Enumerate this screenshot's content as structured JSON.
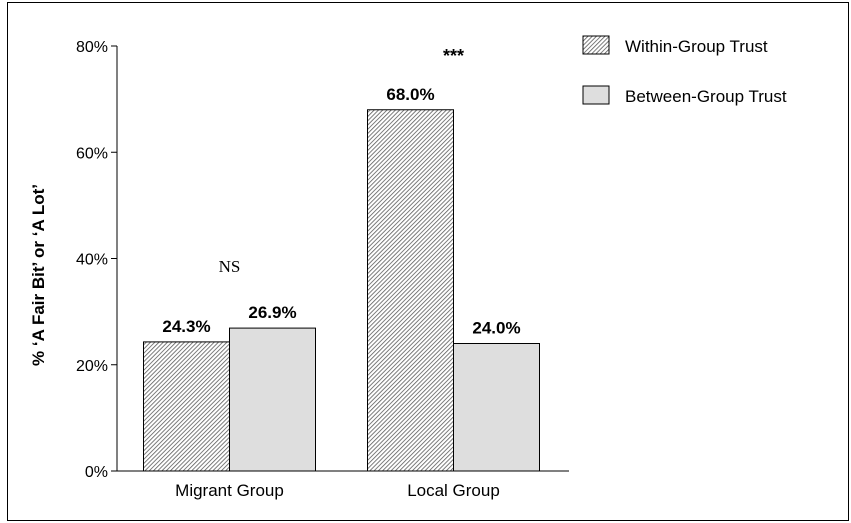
{
  "chart_data": {
    "type": "bar",
    "categories": [
      "Migrant Group",
      "Local Group"
    ],
    "series": [
      {
        "name": "Within-Group Trust",
        "values": [
          24.3,
          68.0
        ],
        "color": "#ffffff",
        "pattern": "diagonal-hatch"
      },
      {
        "name": "Between-Group Trust",
        "values": [
          26.9,
          24.0
        ],
        "color": "#dedede",
        "pattern": "solid"
      }
    ],
    "value_labels": [
      [
        "24.3%",
        "68.0%"
      ],
      [
        "26.9%",
        "24.0%"
      ]
    ],
    "ylabel": "% ‘A Fair Bit’ or ‘A Lot’",
    "xlabel": "",
    "ylim": [
      0,
      80
    ],
    "yticks": [
      0,
      20,
      40,
      60,
      80
    ],
    "ytick_labels": [
      "0%",
      "20%",
      "40%",
      "60%",
      "80%"
    ],
    "annotations": [
      {
        "text": "NS",
        "category": "Migrant Group",
        "value": 37.5
      },
      {
        "text": "***",
        "category": "Local Group",
        "value": 77
      }
    ],
    "legend": {
      "placement": "top-right"
    },
    "grid": false
  }
}
